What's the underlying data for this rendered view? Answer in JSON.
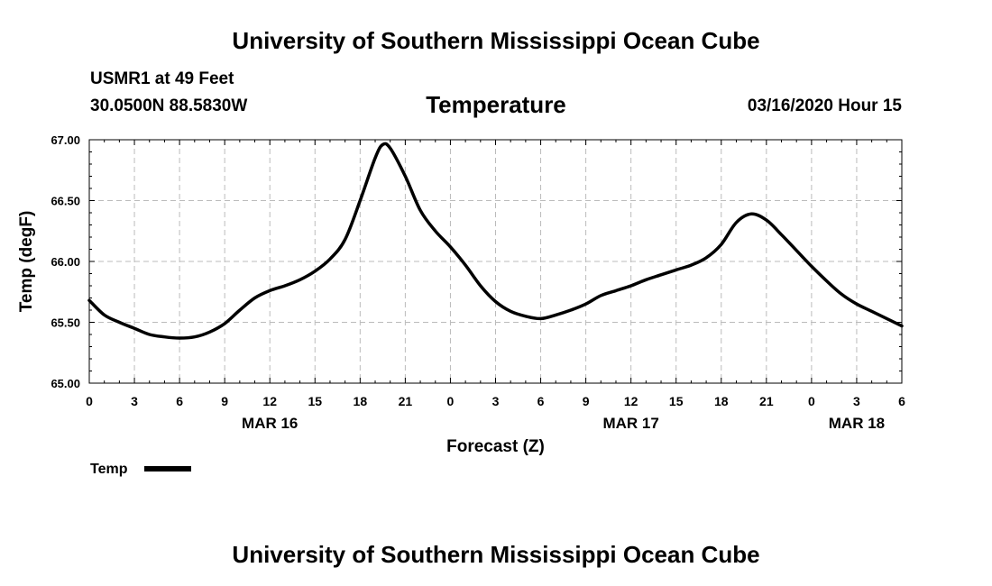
{
  "header": {
    "title": "University of Southern Mississippi Ocean Cube",
    "station": "USMR1 at 49 Feet",
    "coords": "30.0500N 88.5830W",
    "subtitle": "Temperature",
    "datetime": "03/16/2020 Hour 15"
  },
  "footer": {
    "title": "University of Southern Mississippi Ocean Cube"
  },
  "chart_data": {
    "type": "line",
    "title": "Temperature",
    "xlabel": "Forecast (Z)",
    "ylabel": "Temp (degF)",
    "ylim": [
      65.0,
      67.0
    ],
    "xlim": [
      0,
      54
    ],
    "y_ticks": [
      "65.00",
      "65.50",
      "66.00",
      "66.50",
      "67.00"
    ],
    "y_tick_values": [
      65.0,
      65.5,
      66.0,
      66.5,
      67.0
    ],
    "x_ticks": [
      {
        "x": 0,
        "label": "0"
      },
      {
        "x": 3,
        "label": "3"
      },
      {
        "x": 6,
        "label": "6"
      },
      {
        "x": 9,
        "label": "9"
      },
      {
        "x": 12,
        "label": "12"
      },
      {
        "x": 15,
        "label": "15"
      },
      {
        "x": 18,
        "label": "18"
      },
      {
        "x": 21,
        "label": "21"
      },
      {
        "x": 24,
        "label": "0"
      },
      {
        "x": 27,
        "label": "3"
      },
      {
        "x": 30,
        "label": "6"
      },
      {
        "x": 33,
        "label": "9"
      },
      {
        "x": 36,
        "label": "12"
      },
      {
        "x": 39,
        "label": "15"
      },
      {
        "x": 42,
        "label": "18"
      },
      {
        "x": 45,
        "label": "21"
      },
      {
        "x": 48,
        "label": "0"
      },
      {
        "x": 51,
        "label": "3"
      },
      {
        "x": 54,
        "label": "6"
      }
    ],
    "date_labels": [
      {
        "x": 12,
        "label": "MAR 16"
      },
      {
        "x": 36,
        "label": "MAR 17"
      },
      {
        "x": 51,
        "label": "MAR 18"
      }
    ],
    "grid": true,
    "legend": {
      "position": "bottom-left",
      "entries": [
        "Temp"
      ]
    },
    "series": [
      {
        "name": "Temp",
        "color": "#000000",
        "x": [
          0,
          1,
          2,
          3,
          4,
          5,
          6,
          7,
          8,
          9,
          10,
          11,
          12,
          13,
          14,
          15,
          16,
          17,
          18,
          19,
          19.5,
          20,
          21,
          22,
          23,
          24,
          25,
          26,
          27,
          28,
          29,
          30,
          31,
          32,
          33,
          34,
          35,
          36,
          37,
          38,
          39,
          40,
          41,
          42,
          43,
          44,
          45,
          46,
          47,
          48,
          49,
          50,
          51,
          52,
          53,
          54
        ],
        "values": [
          65.68,
          65.56,
          65.5,
          65.45,
          65.4,
          65.38,
          65.37,
          65.38,
          65.42,
          65.49,
          65.6,
          65.7,
          65.76,
          65.8,
          65.85,
          65.92,
          66.02,
          66.18,
          66.5,
          66.85,
          66.96,
          66.93,
          66.7,
          66.42,
          66.25,
          66.12,
          65.97,
          65.8,
          65.67,
          65.59,
          65.55,
          65.53,
          65.56,
          65.6,
          65.65,
          65.72,
          65.76,
          65.8,
          65.85,
          65.89,
          65.93,
          65.97,
          66.03,
          66.14,
          66.32,
          66.39,
          66.34,
          66.22,
          66.09,
          65.96,
          65.84,
          65.73,
          65.65,
          65.59,
          65.53,
          65.47
        ]
      }
    ]
  }
}
